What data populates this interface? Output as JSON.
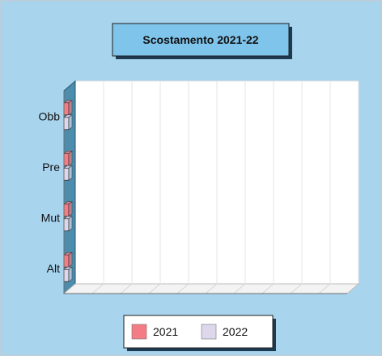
{
  "chart_data": {
    "type": "bar",
    "orientation": "horizontal",
    "style": "3d",
    "title": "Scostamento 2021-22",
    "categories": [
      "Obb",
      "Pre",
      "Mut",
      "Alt"
    ],
    "series": [
      {
        "name": "2021",
        "color": "#f47c84",
        "values": [
          0,
          0,
          0,
          0
        ]
      },
      {
        "name": "2022",
        "color": "#ddd7ec",
        "values": [
          0,
          0,
          0,
          0
        ]
      }
    ],
    "grid": true,
    "legend_position": "bottom",
    "colors": {
      "background": "#a8d4ee",
      "plot": "#ffffff",
      "title_box": "#7fc4ea",
      "wall": "#4c8cac"
    }
  }
}
